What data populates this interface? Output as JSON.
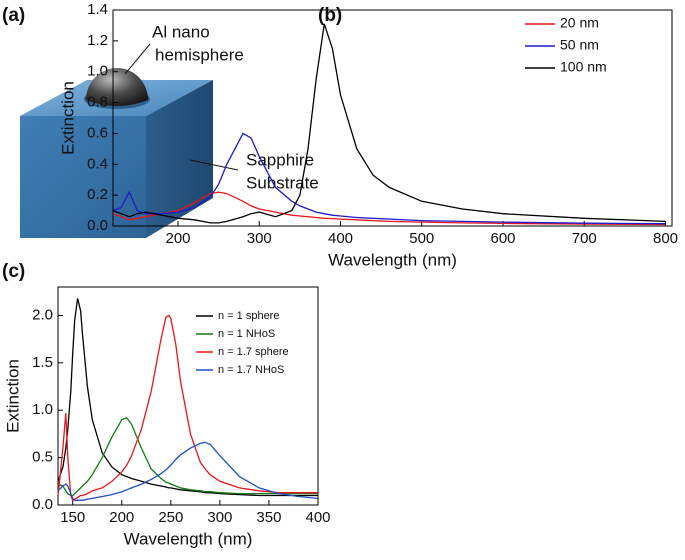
{
  "illustration": {
    "label": "(a)",
    "hemisphere": [
      "Al  nano",
      "hemisphere"
    ],
    "substrate": [
      "Sapphire",
      "Substrate"
    ]
  },
  "chart_data": [
    {
      "type": "line",
      "label": "(b)",
      "xlabel": "Wavelength (nm)",
      "ylabel": "Extinction",
      "xlim": [
        120,
        808
      ],
      "ylim": [
        0,
        1.4
      ],
      "xticks": [
        200,
        300,
        400,
        500,
        600,
        700,
        800
      ],
      "yticks": [
        {
          "value": 0,
          "label": "0.0"
        },
        0.2,
        0.4,
        0.6,
        0.8,
        {
          "value": 1,
          "label": "1.0"
        },
        1.2,
        1.4
      ],
      "legend": "top-right",
      "x": [
        120,
        130,
        140,
        150,
        160,
        180,
        200,
        220,
        240,
        250,
        260,
        280,
        290,
        300,
        320,
        340,
        350,
        360,
        370,
        380,
        390,
        400,
        420,
        440,
        460,
        500,
        550,
        600,
        700,
        800
      ],
      "series": [
        {
          "name": "20 nm",
          "color": "#e8161b",
          "values": [
            0.08,
            0.06,
            0.04,
            0.05,
            0.06,
            0.08,
            0.1,
            0.15,
            0.21,
            0.22,
            0.21,
            0.16,
            0.13,
            0.11,
            0.09,
            0.07,
            0.065,
            0.06,
            0.055,
            0.05,
            0.048,
            0.045,
            0.04,
            0.035,
            0.03,
            0.025,
            0.02,
            0.017,
            0.012,
            0.01
          ]
        },
        {
          "name": "50 nm",
          "color": "#1c1ccf",
          "values": [
            0.1,
            0.12,
            0.22,
            0.1,
            0.08,
            0.08,
            0.09,
            0.12,
            0.19,
            0.27,
            0.4,
            0.6,
            0.57,
            0.45,
            0.25,
            0.16,
            0.13,
            0.11,
            0.09,
            0.08,
            0.07,
            0.065,
            0.055,
            0.05,
            0.045,
            0.035,
            0.03,
            0.025,
            0.018,
            0.015
          ]
        },
        {
          "name": "100 nm",
          "color": "#000000",
          "values": [
            0.1,
            0.08,
            0.06,
            0.08,
            0.09,
            0.07,
            0.05,
            0.04,
            0.02,
            0.02,
            0.03,
            0.06,
            0.08,
            0.09,
            0.06,
            0.1,
            0.2,
            0.5,
            0.95,
            1.31,
            1.15,
            0.85,
            0.5,
            0.33,
            0.25,
            0.16,
            0.11,
            0.08,
            0.05,
            0.03
          ]
        }
      ]
    },
    {
      "type": "line",
      "label": "(c)",
      "xlabel": "Wavelength (nm)",
      "ylabel": "Extinction",
      "xlim": [
        135,
        400
      ],
      "ylim": [
        0,
        2.3
      ],
      "xticks": [
        150,
        200,
        250,
        300,
        350,
        400
      ],
      "yticks": [
        {
          "value": 0,
          "label": "0.0"
        },
        0.5,
        {
          "value": 1,
          "label": "1.0"
        },
        1.5,
        {
          "value": 2,
          "label": "2.0"
        }
      ],
      "legend": "top-right",
      "x": [
        135,
        140,
        143,
        145,
        148,
        150,
        152,
        155,
        158,
        160,
        165,
        170,
        180,
        190,
        200,
        205,
        210,
        220,
        230,
        240,
        245,
        248,
        250,
        255,
        260,
        270,
        280,
        285,
        290,
        300,
        320,
        340,
        360,
        380,
        400
      ],
      "series": [
        {
          "name": "n = 1 sphere",
          "color": "#000000",
          "values": [
            0.25,
            0.4,
            0.6,
            0.8,
            1.2,
            1.6,
            1.95,
            2.18,
            2.05,
            1.8,
            1.25,
            0.9,
            0.55,
            0.4,
            0.32,
            0.3,
            0.28,
            0.25,
            0.22,
            0.2,
            0.19,
            0.18,
            0.18,
            0.17,
            0.16,
            0.15,
            0.14,
            0.13,
            0.13,
            0.12,
            0.11,
            0.1,
            0.1,
            0.1,
            0.1
          ]
        },
        {
          "name": "n = 1 NHoS",
          "color": "#127a12",
          "values": [
            0.22,
            0.2,
            0.15,
            0.12,
            0.1,
            0.1,
            0.12,
            0.15,
            0.18,
            0.2,
            0.25,
            0.32,
            0.5,
            0.72,
            0.9,
            0.92,
            0.85,
            0.6,
            0.38,
            0.28,
            0.24,
            0.23,
            0.22,
            0.2,
            0.18,
            0.16,
            0.15,
            0.14,
            0.14,
            0.13,
            0.12,
            0.12,
            0.12,
            0.12,
            0.12
          ]
        },
        {
          "name": "n = 1.7 sphere",
          "color": "#e8161b",
          "values": [
            0.1,
            0.6,
            0.97,
            0.5,
            0.1,
            0.05,
            0.06,
            0.08,
            0.1,
            0.1,
            0.12,
            0.15,
            0.18,
            0.25,
            0.35,
            0.42,
            0.52,
            0.8,
            1.2,
            1.75,
            1.98,
            2.0,
            1.97,
            1.7,
            1.3,
            0.75,
            0.45,
            0.38,
            0.32,
            0.25,
            0.18,
            0.15,
            0.13,
            0.13,
            0.13
          ]
        },
        {
          "name": "n = 1.7 NHoS",
          "color": "#1f4fc4",
          "values": [
            0.15,
            0.2,
            0.22,
            0.2,
            0.12,
            0.07,
            0.05,
            0.05,
            0.05,
            0.05,
            0.06,
            0.07,
            0.09,
            0.11,
            0.14,
            0.16,
            0.18,
            0.22,
            0.27,
            0.33,
            0.37,
            0.4,
            0.42,
            0.48,
            0.53,
            0.6,
            0.65,
            0.66,
            0.64,
            0.52,
            0.3,
            0.18,
            0.12,
            0.09,
            0.07
          ]
        }
      ]
    }
  ]
}
